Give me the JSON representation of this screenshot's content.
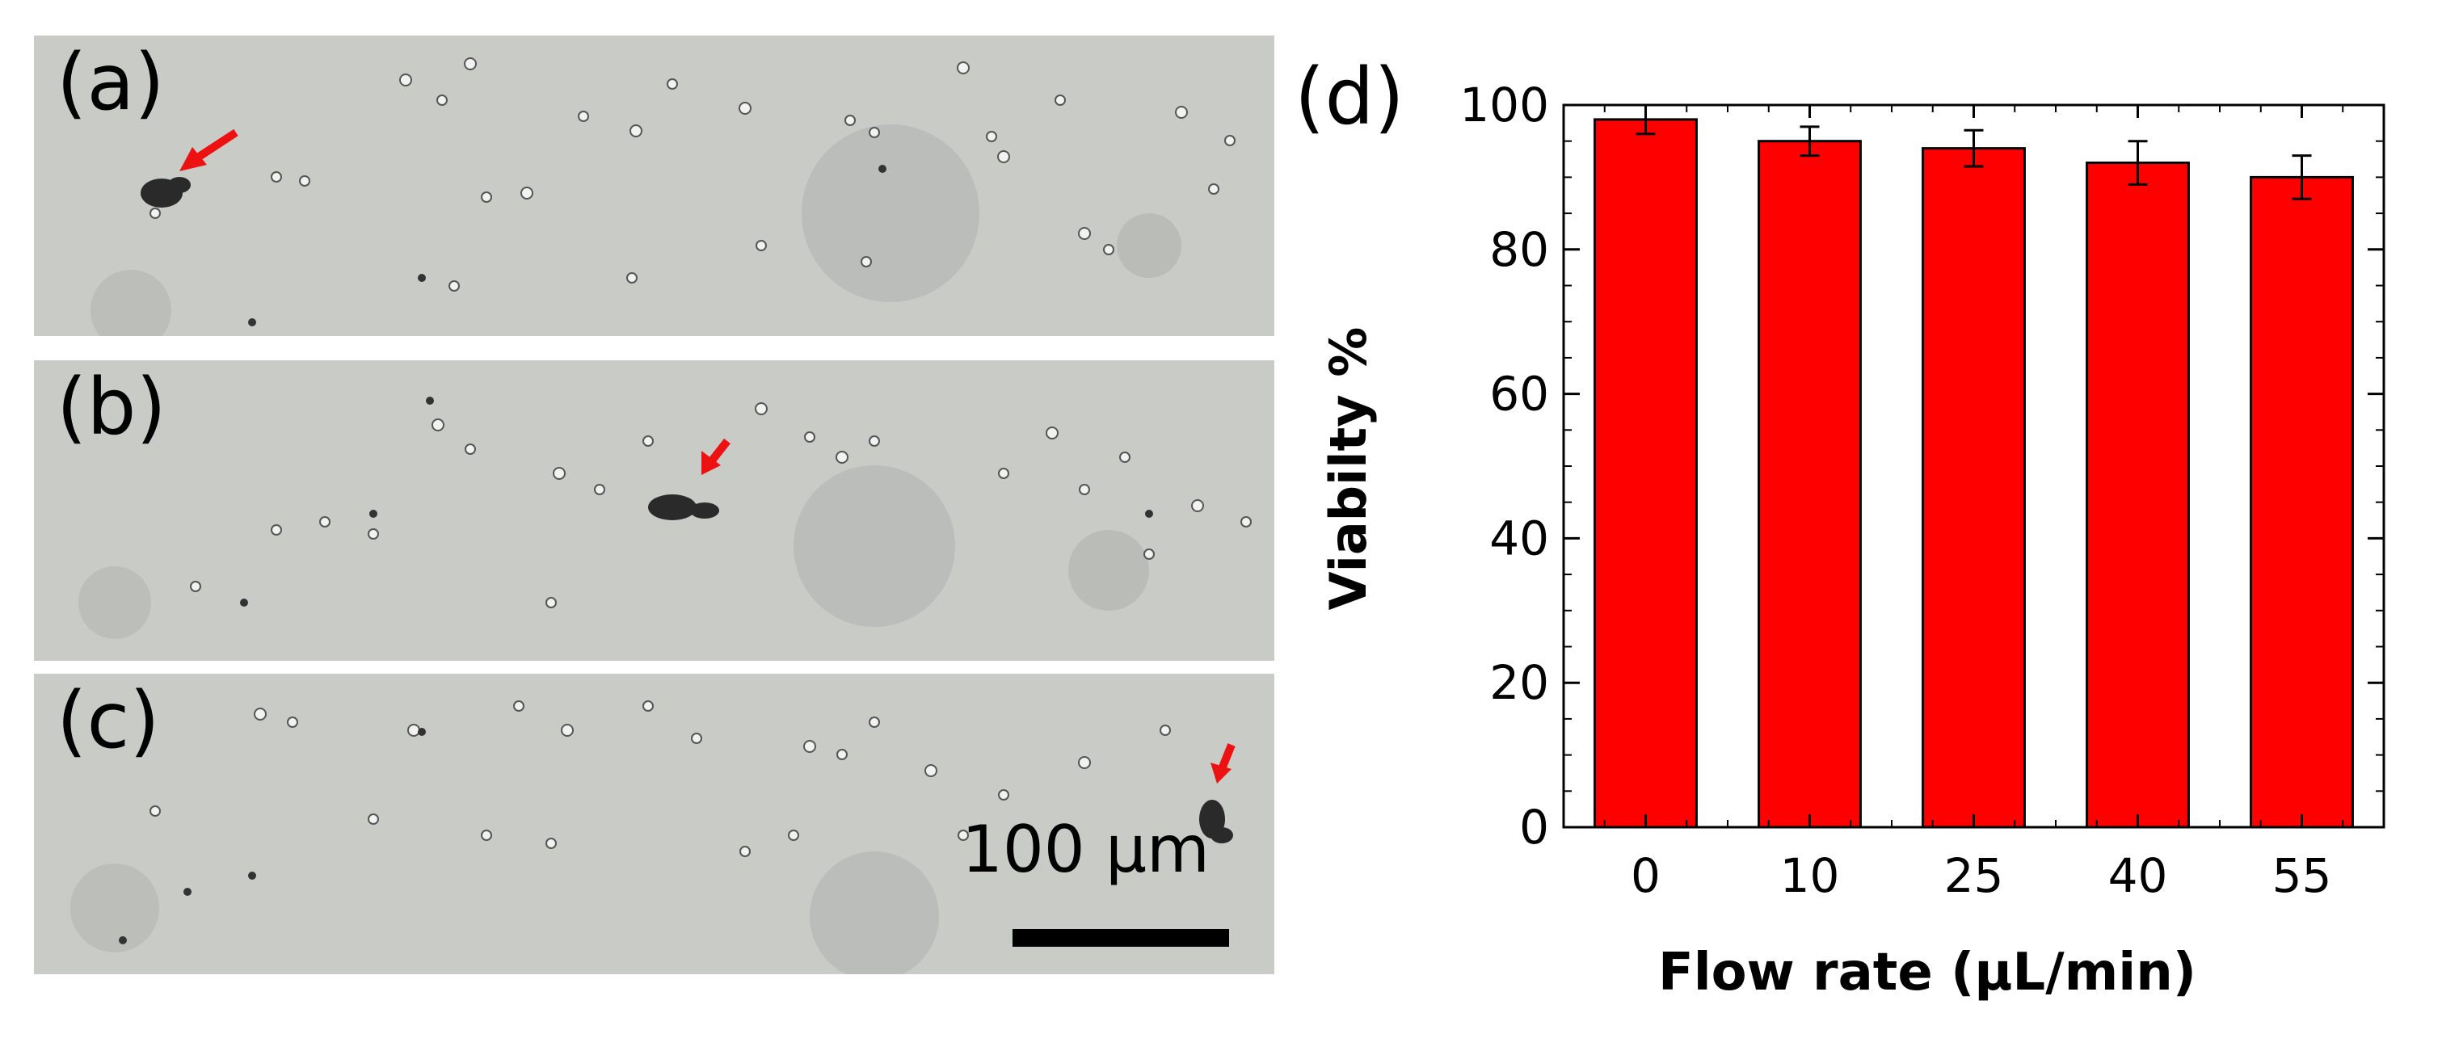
{
  "panels": [
    {
      "label": "(a)"
    },
    {
      "label": "(b)"
    },
    {
      "label": "(c)"
    }
  ],
  "scale_bar": {
    "label": "100 µm"
  },
  "chart_panel_label": "(d)",
  "colors": {
    "bar": "#ff0000",
    "arrow": "#ee1111",
    "axis": "#000000"
  },
  "chart_data": {
    "type": "bar",
    "categories": [
      "0",
      "10",
      "25",
      "40",
      "55"
    ],
    "values": [
      98,
      95,
      94,
      92,
      90
    ],
    "errors": [
      2,
      2,
      2.5,
      3,
      3
    ],
    "xlabel": "Flow rate (µL/min)",
    "ylabel": "Viabilty %",
    "ylim": [
      0,
      100
    ],
    "yticks": [
      0,
      20,
      40,
      60,
      80,
      100
    ],
    "grid": false,
    "legend": "none"
  }
}
